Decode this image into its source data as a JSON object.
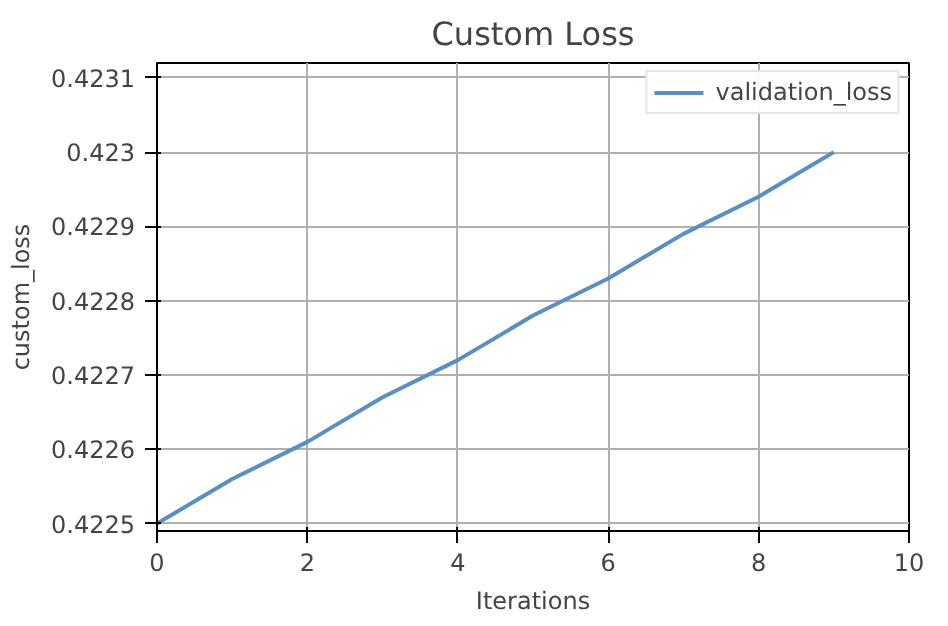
{
  "chart_data": {
    "type": "line",
    "title": "Custom Loss",
    "xlabel": "Iterations",
    "ylabel": "custom_loss",
    "x": [
      0,
      1,
      2,
      3,
      4,
      5,
      6,
      7,
      8,
      9
    ],
    "series": [
      {
        "name": "validation_loss",
        "color": "#5a8fc3",
        "values": [
          0.4225,
          0.42256,
          0.42261,
          0.42267,
          0.42272,
          0.42278,
          0.42283,
          0.42289,
          0.42294,
          0.423
        ]
      }
    ],
    "xlim": [
      0,
      10
    ],
    "xticks": [
      0,
      2,
      4,
      6,
      8,
      10
    ],
    "ylim": [
      0.42249,
      0.42312
    ],
    "yticks": [
      0.4225,
      0.4226,
      0.4227,
      0.4228,
      0.4229,
      0.423,
      0.4231
    ],
    "grid": true,
    "legend": "top right",
    "line_style": "solid",
    "marker": "none"
  }
}
